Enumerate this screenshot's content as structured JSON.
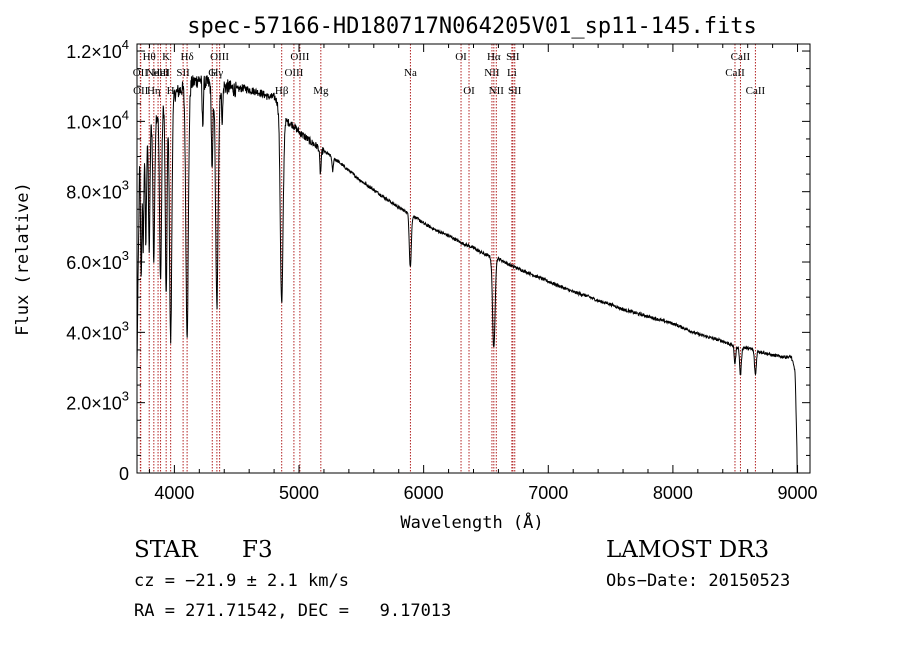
{
  "chart_data": {
    "type": "line",
    "title": "spec-57166-HD180717N064205V01_sp11-145.fits",
    "xlabel": "Wavelength (Å)",
    "ylabel": "Flux (relative)",
    "xlim": [
      3700,
      9100
    ],
    "ylim": [
      0,
      12200
    ],
    "x_ticks": [
      {
        "value": 4000,
        "label": "4000"
      },
      {
        "value": 5000,
        "label": "5000"
      },
      {
        "value": 6000,
        "label": "6000"
      },
      {
        "value": 7000,
        "label": "7000"
      },
      {
        "value": 8000,
        "label": "8000"
      },
      {
        "value": 9000,
        "label": "9000"
      }
    ],
    "y_ticks": [
      {
        "value": 0,
        "mant": "0",
        "exp": ""
      },
      {
        "value": 2000,
        "mant": "2.0×10",
        "exp": "3"
      },
      {
        "value": 4000,
        "mant": "4.0×10",
        "exp": "3"
      },
      {
        "value": 6000,
        "mant": "6.0×10",
        "exp": "3"
      },
      {
        "value": 8000,
        "mant": "8.0×10",
        "exp": "3"
      },
      {
        "value": 10000,
        "mant": "1.0×10",
        "exp": "4"
      },
      {
        "value": 12000,
        "mant": "1.2×10",
        "exp": "4"
      }
    ],
    "continuum": {
      "x": [
        3700,
        3720,
        3740,
        3760,
        3780,
        3800,
        3830,
        3860,
        3890,
        3920,
        3950,
        3980,
        4010,
        4050,
        4100,
        4150,
        4200,
        4250,
        4300,
        4350,
        4400,
        4450,
        4500,
        4550,
        4600,
        4650,
        4700,
        4750,
        4800,
        4850,
        4900,
        4950,
        5000,
        5050,
        5100,
        5200,
        5300,
        5400,
        5500,
        5600,
        5700,
        5800,
        5900,
        6000,
        6100,
        6200,
        6300,
        6400,
        6500,
        6600,
        6700,
        6800,
        6900,
        7000,
        7100,
        7200,
        7300,
        7400,
        7500,
        7600,
        7700,
        7800,
        7900,
        8000,
        8100,
        8200,
        8300,
        8400,
        8500,
        8600,
        8700,
        8800,
        8900,
        8950,
        8980,
        9000
      ],
      "y": [
        3000,
        8700,
        9300,
        9600,
        9700,
        9900,
        10000,
        10200,
        10300,
        10500,
        10500,
        10600,
        10800,
        10900,
        11000,
        11100,
        11200,
        11100,
        11050,
        10900,
        11000,
        10950,
        10900,
        10950,
        10900,
        10850,
        10800,
        10700,
        10700,
        10400,
        10000,
        9900,
        9700,
        9550,
        9400,
        9150,
        8900,
        8600,
        8300,
        8050,
        7800,
        7550,
        7350,
        7100,
        6900,
        6750,
        6550,
        6400,
        6200,
        6100,
        5900,
        5750,
        5600,
        5450,
        5300,
        5150,
        5050,
        4900,
        4800,
        4650,
        4550,
        4450,
        4350,
        4250,
        4100,
        3950,
        3850,
        3750,
        3600,
        3550,
        3450,
        3350,
        3300,
        3300,
        2900,
        0
      ]
    },
    "absorption_features": [
      {
        "x": 3734,
        "depth": 3500,
        "width": 5
      },
      {
        "x": 3750,
        "depth": 3000,
        "width": 5
      },
      {
        "x": 3771,
        "depth": 3200,
        "width": 5
      },
      {
        "x": 3798,
        "depth": 3500,
        "width": 6
      },
      {
        "x": 3835,
        "depth": 4000,
        "width": 7
      },
      {
        "x": 3889,
        "depth": 4800,
        "width": 8
      },
      {
        "x": 3934,
        "depth": 5600,
        "width": 7
      },
      {
        "x": 3970,
        "depth": 6800,
        "width": 9
      },
      {
        "x": 4102,
        "depth": 7000,
        "width": 10
      },
      {
        "x": 4227,
        "depth": 1200,
        "width": 5
      },
      {
        "x": 4303,
        "depth": 2500,
        "width": 6
      },
      {
        "x": 4341,
        "depth": 6200,
        "width": 10
      },
      {
        "x": 4384,
        "depth": 900,
        "width": 5
      },
      {
        "x": 4861,
        "depth": 5500,
        "width": 11
      },
      {
        "x": 5172,
        "depth": 700,
        "width": 6
      },
      {
        "x": 5270,
        "depth": 400,
        "width": 5
      },
      {
        "x": 5893,
        "depth": 1500,
        "width": 8
      },
      {
        "x": 6563,
        "depth": 2600,
        "width": 10
      },
      {
        "x": 8498,
        "depth": 500,
        "width": 6
      },
      {
        "x": 8542,
        "depth": 800,
        "width": 7
      },
      {
        "x": 8662,
        "depth": 700,
        "width": 7
      }
    ],
    "line_markers": [
      {
        "x": 3727,
        "label": "OII",
        "row": 1
      },
      {
        "x": 3730,
        "label": "OII",
        "row": 2
      },
      {
        "x": 3798,
        "label": "Hθ",
        "row": 0
      },
      {
        "x": 3835,
        "label": "Hη",
        "row": 2
      },
      {
        "x": 3869,
        "label": "NeIII",
        "row": 1
      },
      {
        "x": 3889,
        "label": "HeI",
        "row": 1
      },
      {
        "x": 3934,
        "label": "K",
        "row": 0
      },
      {
        "x": 3970,
        "label": "H",
        "row": 2
      },
      {
        "x": 4070,
        "label": "SII",
        "row": 1
      },
      {
        "x": 4102,
        "label": "Hδ",
        "row": 0
      },
      {
        "x": 4304,
        "label": "G",
        "row": 1
      },
      {
        "x": 4341,
        "label": "Hγ",
        "row": 1
      },
      {
        "x": 4363,
        "label": "OIII",
        "row": 0
      },
      {
        "x": 4861,
        "label": "Hβ",
        "row": 2
      },
      {
        "x": 4959,
        "label": "OIII",
        "row": 1
      },
      {
        "x": 5007,
        "label": "OIII",
        "row": 0
      },
      {
        "x": 5175,
        "label": "Mg",
        "row": 2
      },
      {
        "x": 5894,
        "label": "Na",
        "row": 1
      },
      {
        "x": 6300,
        "label": "OI",
        "row": 0
      },
      {
        "x": 6364,
        "label": "OI",
        "row": 2
      },
      {
        "x": 6548,
        "label": "NII",
        "row": 1
      },
      {
        "x": 6563,
        "label": "Hα",
        "row": 0
      },
      {
        "x": 6583,
        "label": "NII",
        "row": 2
      },
      {
        "x": 6708,
        "label": "Li",
        "row": 1
      },
      {
        "x": 6716,
        "label": "SII",
        "row": 0
      },
      {
        "x": 6731,
        "label": "SII",
        "row": 2
      },
      {
        "x": 8498,
        "label": "CaII",
        "row": 1
      },
      {
        "x": 8542,
        "label": "CaII",
        "row": 0
      },
      {
        "x": 8662,
        "label": "CaII",
        "row": 2
      }
    ],
    "marker_color": "#b22222",
    "line_color": "#000000"
  },
  "info": {
    "object_class": "STAR",
    "subclass": "F3",
    "survey": "LAMOST DR3",
    "redshift": "cz = −21.9 ± 2.1 km/s",
    "obs_date": "Obs−Date: 20150523",
    "coords": "RA = 271.71542, DEC =   9.17013"
  }
}
